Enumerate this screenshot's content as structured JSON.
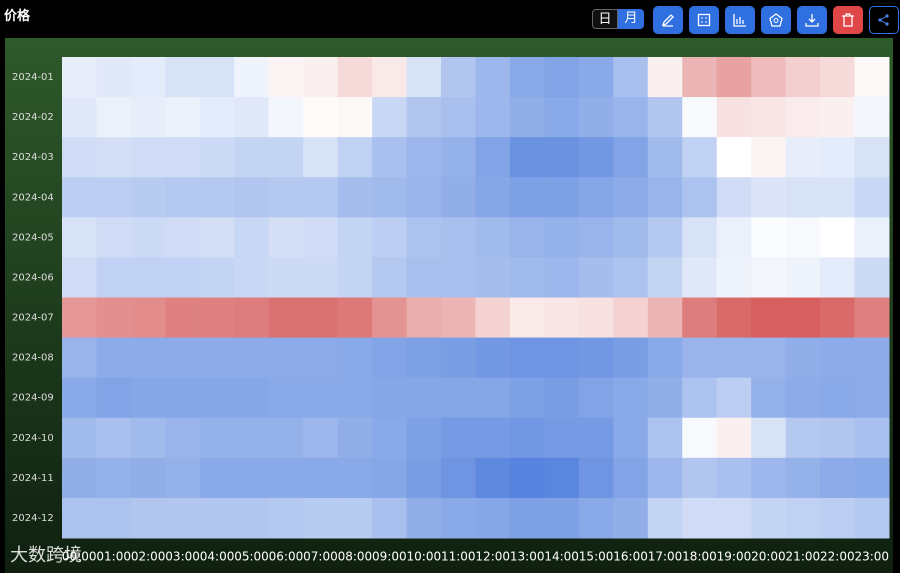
{
  "header": {
    "title": "价格",
    "toggle": [
      "日",
      "月"
    ]
  },
  "watermark": "大数跨境",
  "chart_data": {
    "type": "heatmap",
    "x": [
      "00:00",
      "01:00",
      "02:00",
      "03:00",
      "04:00",
      "05:00",
      "06:00",
      "07:00",
      "08:00",
      "09:00",
      "10:00",
      "11:00",
      "12:00",
      "13:00",
      "14:00",
      "15:00",
      "16:00",
      "17:00",
      "18:00",
      "19:00",
      "20:00",
      "21:00",
      "22:00",
      "23:00"
    ],
    "y": [
      "2024-01",
      "2024-02",
      "2024-03",
      "2024-04",
      "2024-05",
      "2024-06",
      "2024-07",
      "2024-08",
      "2024-09",
      "2024-10",
      "2024-11",
      "2024-12"
    ],
    "colormap": [
      "#3b6fd8",
      "#ffffff",
      "#d04545"
    ],
    "zlim": [
      0,
      100
    ],
    "values": [
      [
        44,
        42,
        43,
        40,
        40,
        46,
        53,
        54,
        60,
        56,
        40,
        30,
        25,
        20,
        18,
        20,
        28,
        54,
        70,
        75,
        68,
        63,
        60,
        52
      ],
      [
        42,
        45,
        44,
        45,
        43,
        42,
        47,
        51,
        52,
        36,
        30,
        28,
        25,
        22,
        20,
        22,
        24,
        30,
        48,
        58,
        57,
        55,
        54,
        47
      ],
      [
        38,
        39,
        38,
        38,
        37,
        35,
        35,
        40,
        34,
        28,
        25,
        23,
        18,
        12,
        12,
        14,
        18,
        26,
        34,
        50,
        53,
        44,
        43,
        40
      ],
      [
        33,
        33,
        32,
        31,
        31,
        30,
        31,
        31,
        27,
        26,
        24,
        22,
        19,
        17,
        17,
        19,
        21,
        24,
        29,
        38,
        41,
        40,
        40,
        36
      ],
      [
        40,
        38,
        37,
        38,
        39,
        36,
        39,
        38,
        35,
        33,
        29,
        28,
        26,
        24,
        23,
        24,
        26,
        31,
        40,
        45,
        49,
        48,
        50,
        45
      ],
      [
        38,
        34,
        34,
        34,
        35,
        36,
        37,
        37,
        35,
        31,
        28,
        28,
        27,
        26,
        25,
        27,
        29,
        35,
        42,
        46,
        47,
        46,
        43,
        37
      ],
      [
        78,
        80,
        81,
        84,
        84,
        85,
        88,
        88,
        86,
        79,
        72,
        70,
        62,
        56,
        57,
        58,
        62,
        70,
        85,
        90,
        93,
        93,
        90,
        84
      ],
      [
        24,
        21,
        21,
        21,
        21,
        21,
        21,
        21,
        20,
        18,
        17,
        16,
        14,
        13,
        13,
        14,
        16,
        20,
        24,
        24,
        24,
        22,
        21,
        21
      ],
      [
        20,
        18,
        19,
        19,
        19,
        19,
        20,
        20,
        20,
        19,
        19,
        19,
        19,
        17,
        16,
        18,
        20,
        22,
        29,
        33,
        23,
        21,
        20,
        21
      ],
      [
        26,
        28,
        26,
        24,
        23,
        23,
        23,
        25,
        22,
        20,
        17,
        15,
        15,
        14,
        15,
        15,
        20,
        29,
        48,
        54,
        40,
        31,
        30,
        28
      ],
      [
        22,
        23,
        22,
        23,
        20,
        20,
        20,
        20,
        20,
        19,
        16,
        13,
        9,
        7,
        8,
        13,
        18,
        25,
        30,
        28,
        25,
        23,
        21,
        20
      ],
      [
        29,
        29,
        30,
        30,
        30,
        30,
        31,
        32,
        32,
        28,
        22,
        20,
        19,
        17,
        17,
        20,
        22,
        35,
        38,
        38,
        35,
        34,
        33,
        31
      ]
    ]
  }
}
